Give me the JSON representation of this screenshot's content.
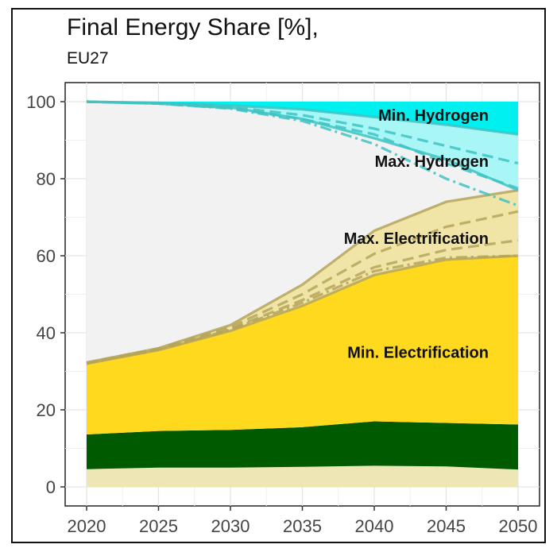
{
  "title": "Final Energy Share [%],",
  "subtitle": "EU27",
  "chart_data": {
    "type": "area",
    "x": [
      2020,
      2025,
      2030,
      2035,
      2040,
      2045,
      2050
    ],
    "xlim": [
      2020,
      2050
    ],
    "ylim": [
      0,
      100
    ],
    "x_ticks": [
      "2020",
      "2025",
      "2030",
      "2035",
      "2040",
      "2045",
      "2050"
    ],
    "y_ticks": [
      "0",
      "20",
      "40",
      "60",
      "80",
      "100"
    ],
    "grid": true,
    "stacked_boundaries": [
      {
        "color": "#EEE7B5",
        "upper": [
          4.6,
          5.0,
          5.0,
          5.2,
          5.5,
          5.3,
          4.5
        ]
      },
      {
        "color": "#005A00",
        "upper": [
          13.6,
          14.5,
          14.8,
          15.5,
          17.0,
          16.6,
          16.2
        ]
      },
      {
        "color": "#FFD91E",
        "upper": [
          32.0,
          35.5,
          40.5,
          47.0,
          55.0,
          59.0,
          60.0
        ]
      },
      {
        "color": "#F0E4A6",
        "upper": [
          32.3,
          36.0,
          42.0,
          52.5,
          66.5,
          74.0,
          77.0
        ]
      },
      {
        "color": "#F2F2F2",
        "upper": [
          100,
          99.5,
          98.5,
          95.5,
          90.5,
          85.0,
          77.0
        ]
      },
      {
        "color": "#A8F6F6",
        "upper": [
          100,
          99.7,
          99.0,
          98.0,
          96.0,
          94.0,
          91.5
        ]
      },
      {
        "color": "#00F0F0",
        "upper": [
          100,
          100,
          100,
          100,
          100,
          100,
          100
        ]
      }
    ],
    "electrification_lines": [
      {
        "style": "solid",
        "values": [
          32.0,
          35.5,
          40.5,
          47.0,
          55.0,
          59.0,
          60.0
        ]
      },
      {
        "style": "dashdot",
        "values": [
          32.0,
          35.7,
          40.8,
          47.8,
          56.0,
          59.5,
          60.0
        ]
      },
      {
        "style": "dashed",
        "values": [
          32.1,
          35.8,
          41.0,
          48.5,
          57.0,
          61.5,
          64.0
        ]
      },
      {
        "style": "dashed",
        "values": [
          32.2,
          35.9,
          41.5,
          50.0,
          60.5,
          67.5,
          71.5
        ]
      },
      {
        "style": "solid",
        "values": [
          32.3,
          36.0,
          42.0,
          52.5,
          66.5,
          74.0,
          77.0
        ]
      }
    ],
    "hydrogen_lines": [
      {
        "style": "solid",
        "values": [
          100,
          99.7,
          99.0,
          98.0,
          96.0,
          94.0,
          91.5
        ]
      },
      {
        "style": "dashed",
        "values": [
          100,
          99.6,
          98.6,
          96.5,
          93.0,
          88.5,
          84.0
        ]
      },
      {
        "style": "dashed",
        "values": [
          100,
          99.5,
          98.3,
          95.5,
          91.5,
          84.0,
          77.5
        ]
      },
      {
        "style": "dashdot",
        "values": [
          100,
          99.5,
          98.2,
          95.0,
          89.0,
          80.0,
          73.0
        ]
      },
      {
        "style": "solid",
        "values": [
          100,
          99.5,
          98.5,
          95.5,
          90.5,
          85.0,
          77.0
        ]
      }
    ],
    "annotations": [
      {
        "text": "Min. Hydrogen",
        "x": 2050,
        "y": 96.5
      },
      {
        "text": "Max. Hydrogen",
        "x": 2050,
        "y": 84.5
      },
      {
        "text": "Max. Electrification",
        "x": 2050,
        "y": 64.5
      },
      {
        "text": "Min. Electrification",
        "x": 2050,
        "y": 35.0
      }
    ]
  }
}
